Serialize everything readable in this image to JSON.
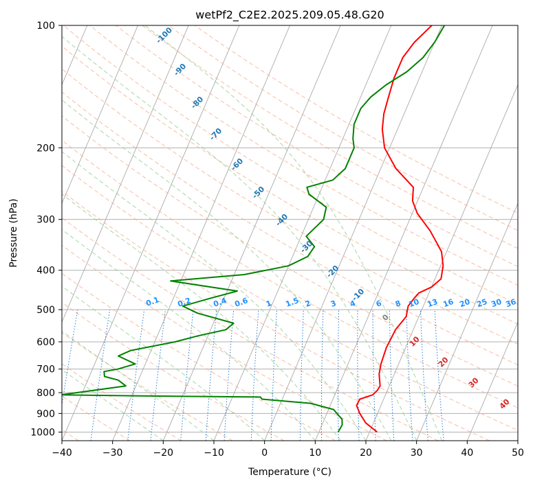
{
  "chart_data": {
    "type": "line",
    "subtype": "skew-t log-p diagram",
    "title": "wetPf2_C2E2.2025.209.05.48.G20",
    "xlabel": "Temperature (°C)",
    "ylabel": "Pressure (hPa)",
    "xlim": [
      -40,
      50
    ],
    "ylim": [
      1050,
      100
    ],
    "y_scale": "log",
    "grid": true,
    "x_ticks": [
      -40,
      -30,
      -20,
      -10,
      0,
      10,
      20,
      30,
      40,
      50
    ],
    "y_ticks": [
      100,
      200,
      300,
      400,
      500,
      600,
      700,
      800,
      900,
      1000
    ],
    "colors": {
      "temperature": "#ff0000",
      "dewpoint": "#008000",
      "isotherm": "#a0a0a0",
      "dry_adiabat": "#f4a582",
      "moist_adiabat": "#8fcc8f",
      "mixing_ratio": "#1f77d4",
      "isotherm_labels": "#1f77b4",
      "gridline": "#b0b0b0"
    },
    "series": [
      {
        "key": "temperature",
        "points": [
          [
            21.5,
            1000
          ],
          [
            18.5,
            950
          ],
          [
            16.5,
            900
          ],
          [
            15.2,
            860
          ],
          [
            15.3,
            830
          ],
          [
            17.5,
            810
          ],
          [
            18.0,
            790
          ],
          [
            18.2,
            770
          ],
          [
            17.0,
            720
          ],
          [
            16.5,
            680
          ],
          [
            16.2,
            620
          ],
          [
            16.5,
            560
          ],
          [
            17.5,
            520
          ],
          [
            17.0,
            490
          ],
          [
            17.5,
            470
          ],
          [
            18.0,
            455
          ],
          [
            20.0,
            440
          ],
          [
            21.2,
            420
          ],
          [
            20.5,
            390
          ],
          [
            19.0,
            360
          ],
          [
            15.0,
            320
          ],
          [
            11.0,
            290
          ],
          [
            9.0,
            270
          ],
          [
            8.0,
            250
          ],
          [
            3.0,
            225
          ],
          [
            -1.0,
            200
          ],
          [
            -3.0,
            180
          ],
          [
            -4.0,
            165
          ],
          [
            -4.5,
            150
          ],
          [
            -5.0,
            135
          ],
          [
            -5.0,
            120
          ],
          [
            -4.0,
            110
          ],
          [
            -2.0,
            100
          ]
        ]
      },
      {
        "key": "dewpoint",
        "points": [
          [
            13.8,
            1000
          ],
          [
            14.0,
            960
          ],
          [
            13.5,
            930
          ],
          [
            12.5,
            910
          ],
          [
            11.0,
            880
          ],
          [
            6.0,
            850
          ],
          [
            -4.0,
            830
          ],
          [
            -4.5,
            820
          ],
          [
            -28.0,
            815
          ],
          [
            -44.0,
            810
          ],
          [
            -32.0,
            770
          ],
          [
            -34.0,
            745
          ],
          [
            -37.0,
            730
          ],
          [
            -37.5,
            710
          ],
          [
            -35.0,
            700
          ],
          [
            -32.0,
            680
          ],
          [
            -36.0,
            650
          ],
          [
            -34.0,
            630
          ],
          [
            -26.0,
            600
          ],
          [
            -22.0,
            580
          ],
          [
            -17.0,
            560
          ],
          [
            -16.0,
            540
          ],
          [
            -24.0,
            510
          ],
          [
            -27.5,
            490
          ],
          [
            -23.0,
            470
          ],
          [
            -18.0,
            450
          ],
          [
            -32.0,
            425
          ],
          [
            -18.0,
            410
          ],
          [
            -10.0,
            390
          ],
          [
            -7.0,
            370
          ],
          [
            -6.5,
            350
          ],
          [
            -9.0,
            330
          ],
          [
            -7.0,
            300
          ],
          [
            -7.5,
            280
          ],
          [
            -12.0,
            260
          ],
          [
            -13.0,
            250
          ],
          [
            -8.5,
            240
          ],
          [
            -7.0,
            225
          ],
          [
            -7.0,
            200
          ],
          [
            -8.0,
            190
          ],
          [
            -9.0,
            175
          ],
          [
            -9.0,
            160
          ],
          [
            -8.0,
            150
          ],
          [
            -6.0,
            140
          ],
          [
            -3.0,
            130
          ],
          [
            -1.0,
            120
          ],
          [
            0.0,
            110
          ],
          [
            0.5,
            100
          ]
        ]
      }
    ],
    "isotherm_labels": [
      "-100",
      "-90",
      "-80",
      "-70",
      "-60",
      "-50",
      "-40",
      "-30",
      "-20",
      "-10",
      "0",
      "10",
      "20",
      "30",
      "40"
    ],
    "mixing_ratio_labels": [
      "0.1",
      "0.2",
      "0.4",
      "0.6",
      "1",
      "1.5",
      "2",
      "3",
      "4",
      "6",
      "8",
      "10",
      "13",
      "16",
      "20",
      "25",
      "30",
      "36"
    ],
    "mixing_ratio_values": [
      0.1,
      0.2,
      0.4,
      0.6,
      1,
      1.5,
      2,
      3,
      4,
      6,
      8,
      10,
      13,
      16,
      20,
      25,
      30,
      36
    ],
    "dry_adiabat_theta_c": [
      -60,
      -50,
      -40,
      -30,
      -20,
      -10,
      0,
      10,
      20,
      30,
      40,
      50,
      60,
      70,
      80,
      90,
      100,
      110,
      120,
      130,
      140,
      150,
      160
    ],
    "moist_adiabat_start_c": [
      -20,
      -10,
      0,
      10,
      15,
      20,
      25,
      30,
      35
    ]
  }
}
